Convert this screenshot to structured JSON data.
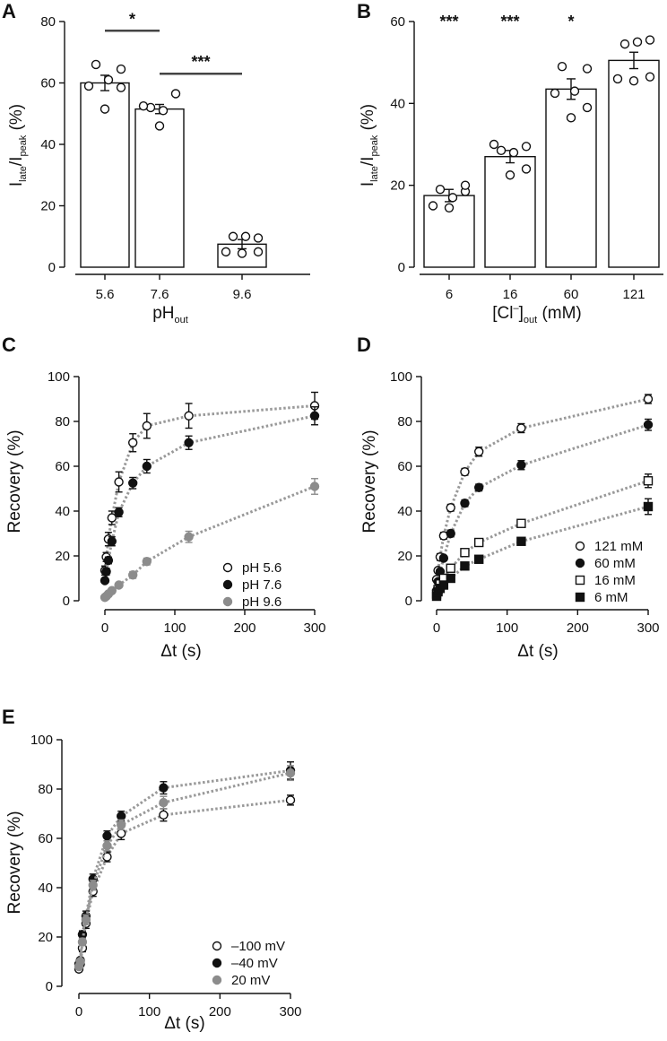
{
  "colors": {
    "black": "#111111",
    "gray": "#8c8c8c",
    "fit": "#999999",
    "white": "#ffffff"
  },
  "chart_data": [
    {
      "panel": "A",
      "type": "bar",
      "categories": [
        "5.6",
        "7.6",
        "9.6"
      ],
      "values": [
        60,
        51.5,
        7.5
      ],
      "errors": [
        2.5,
        1.5,
        1.5
      ],
      "points": [
        [
          66,
          61,
          64.5,
          59,
          51.5,
          58.5
        ],
        [
          52,
          51,
          56.5,
          52.5,
          46
        ],
        [
          10,
          10,
          9.5,
          5,
          4.5,
          5
        ]
      ],
      "xlabel": "pH",
      "xlabel_sub": "out",
      "ylabel": {
        "I1": "I",
        "s1": "late",
        "mid": "/I",
        "s2": "peak",
        "tail": " (%)"
      },
      "ylim": [
        0,
        80
      ],
      "yticks": [
        "0",
        "20",
        "40",
        "60",
        "80"
      ],
      "significance": [
        {
          "from": 0,
          "to": 1,
          "y": 77,
          "label": "*"
        },
        {
          "from": 1,
          "to": 2,
          "y": 63,
          "label": "***"
        }
      ]
    },
    {
      "panel": "B",
      "type": "bar",
      "categories": [
        "6",
        "16",
        "60",
        "121"
      ],
      "values": [
        17.5,
        27,
        43.5,
        50.5
      ],
      "errors": [
        1.5,
        1.5,
        2.5,
        2
      ],
      "points": [
        [
          19,
          17,
          18.5,
          15,
          14.5,
          20
        ],
        [
          28.5,
          28,
          29.5,
          30,
          22.5,
          24
        ],
        [
          49,
          43,
          48.5,
          42.5,
          36.5,
          39
        ],
        [
          54.5,
          55,
          55.5,
          46,
          45.5,
          46.5
        ]
      ],
      "xlabel": "[Cl",
      "xlabel_sup": "–",
      "xlabel_sub": "out",
      "xlabel_tail": " (mM)",
      "ylabel": {
        "I1": "I",
        "s1": "late",
        "mid": "/I",
        "s2": "peak",
        "tail": " (%)"
      },
      "ylim": [
        0,
        60
      ],
      "yticks": [
        "0",
        "20",
        "40",
        "60"
      ],
      "significance": [
        {
          "index": 0,
          "label": "***"
        },
        {
          "index": 1,
          "label": "***"
        },
        {
          "index": 2,
          "label": "*"
        }
      ]
    },
    {
      "panel": "C",
      "type": "scatter",
      "xlabel": "Δt (s)",
      "ylabel": "Recovery (%)",
      "xlim": [
        0,
        300
      ],
      "ylim": [
        0,
        100
      ],
      "xticks": [
        "0",
        "100",
        "200",
        "300"
      ],
      "yticks": [
        "0",
        "20",
        "40",
        "60",
        "80",
        "100"
      ],
      "legend_position": "bottom-right",
      "series": [
        {
          "name": "pH 5.6",
          "marker": "circle-open",
          "color": "#111111",
          "x": [
            0,
            2,
            5,
            10,
            20,
            40,
            60,
            120,
            300
          ],
          "y": [
            13.5,
            19.5,
            27.5,
            37,
            53,
            70.5,
            78,
            82.5,
            87
          ],
          "err": [
            2,
            2,
            3,
            3,
            4.5,
            4,
            5.5,
            5.5,
            6
          ]
        },
        {
          "name": "pH 7.6",
          "marker": "circle-filled",
          "color": "#111111",
          "x": [
            0,
            2,
            5,
            10,
            20,
            40,
            60,
            120,
            300
          ],
          "y": [
            9,
            13,
            18,
            26.5,
            39.5,
            52.5,
            60,
            70.5,
            82.5
          ],
          "err": [
            1,
            1.5,
            1.5,
            2,
            2,
            2.5,
            3,
            3,
            4
          ]
        },
        {
          "name": "pH 9.6",
          "marker": "circle-filled",
          "color": "#8c8c8c",
          "x": [
            0,
            2,
            5,
            10,
            20,
            40,
            60,
            120,
            300
          ],
          "y": [
            1.5,
            2,
            3,
            4.5,
            7,
            11.5,
            17.5,
            28.5,
            51
          ],
          "err": [
            0.5,
            0.5,
            0.5,
            1,
            1,
            1.5,
            1.5,
            2.5,
            3.5
          ]
        }
      ]
    },
    {
      "panel": "D",
      "type": "scatter",
      "xlabel": "Δt (s)",
      "ylabel": "Recovery (%)",
      "xlim": [
        0,
        300
      ],
      "ylim": [
        0,
        100
      ],
      "xticks": [
        "0",
        "100",
        "200",
        "300"
      ],
      "yticks": [
        "0",
        "20",
        "40",
        "60",
        "80",
        "100"
      ],
      "legend_position": "bottom-right",
      "series": [
        {
          "name": "121 mM",
          "marker": "circle-open",
          "color": "#111111",
          "x": [
            0,
            2,
            5,
            10,
            20,
            40,
            60,
            120,
            300
          ],
          "y": [
            9.5,
            13.5,
            19.5,
            29,
            41.5,
            57.5,
            66.5,
            77,
            90
          ],
          "err": [
            1,
            1,
            1.5,
            1.5,
            1.5,
            1.5,
            2,
            2,
            2
          ]
        },
        {
          "name": "60 mM",
          "marker": "circle-filled",
          "color": "#111111",
          "x": [
            0,
            2,
            5,
            10,
            20,
            40,
            60,
            120,
            300
          ],
          "y": [
            4.5,
            8.5,
            13,
            19,
            30,
            43.5,
            50.5,
            60.5,
            78.5
          ],
          "err": [
            1,
            1,
            1,
            1,
            1.5,
            1.5,
            1.5,
            2,
            2.5
          ]
        },
        {
          "name": "16 mM",
          "marker": "square-open",
          "color": "#111111",
          "x": [
            0,
            2,
            5,
            10,
            20,
            40,
            60,
            120,
            300
          ],
          "y": [
            3,
            5,
            7.5,
            10,
            14.5,
            21.5,
            26,
            34.5,
            53.5
          ],
          "err": [
            0.5,
            0.5,
            1,
            1,
            1,
            1,
            1,
            1.5,
            3
          ]
        },
        {
          "name": "6 mM",
          "marker": "square-filled",
          "color": "#111111",
          "x": [
            0,
            2,
            5,
            10,
            20,
            40,
            60,
            120,
            300
          ],
          "y": [
            2,
            4,
            5.5,
            7,
            10,
            15.5,
            18.5,
            26.5,
            42
          ],
          "err": [
            0.5,
            0.5,
            0.5,
            1,
            1,
            1,
            1,
            1.5,
            3.5
          ]
        }
      ]
    },
    {
      "panel": "E",
      "type": "scatter",
      "xlabel": "Δt (s)",
      "ylabel": "Recovery (%)",
      "xlim": [
        0,
        300
      ],
      "ylim": [
        0,
        100
      ],
      "xticks": [
        "0",
        "100",
        "200",
        "300"
      ],
      "yticks": [
        "0",
        "20",
        "40",
        "60",
        "80",
        "100"
      ],
      "legend_position": "bottom-right",
      "series": [
        {
          "name": "–100 mV",
          "marker": "circle-open",
          "color": "#111111",
          "x": [
            0,
            2,
            5,
            10,
            20,
            40,
            60,
            120,
            300
          ],
          "y": [
            7,
            9,
            15.5,
            25.5,
            38.5,
            52.5,
            62,
            69.5,
            75.5
          ],
          "err": [
            1,
            1,
            1.5,
            2,
            2,
            2,
            2.5,
            2.5,
            2
          ]
        },
        {
          "name": "–40 mV",
          "marker": "circle-filled",
          "color": "#111111",
          "x": [
            0,
            2,
            5,
            10,
            20,
            40,
            60,
            120,
            300
          ],
          "y": [
            9,
            10.5,
            21,
            28.5,
            43.5,
            61,
            69,
            80.5,
            87.5
          ],
          "err": [
            1,
            1,
            1.5,
            2,
            2,
            2,
            2,
            2.5,
            3.5
          ]
        },
        {
          "name": "20 mV",
          "marker": "circle-filled",
          "color": "#8c8c8c",
          "x": [
            0,
            2,
            5,
            10,
            20,
            40,
            60,
            120,
            300
          ],
          "y": [
            8,
            10,
            18,
            27,
            41,
            57,
            65.5,
            74.5,
            86.5
          ],
          "err": [
            1,
            1,
            1.5,
            2,
            2,
            2,
            2,
            2.5,
            3
          ]
        }
      ]
    }
  ]
}
